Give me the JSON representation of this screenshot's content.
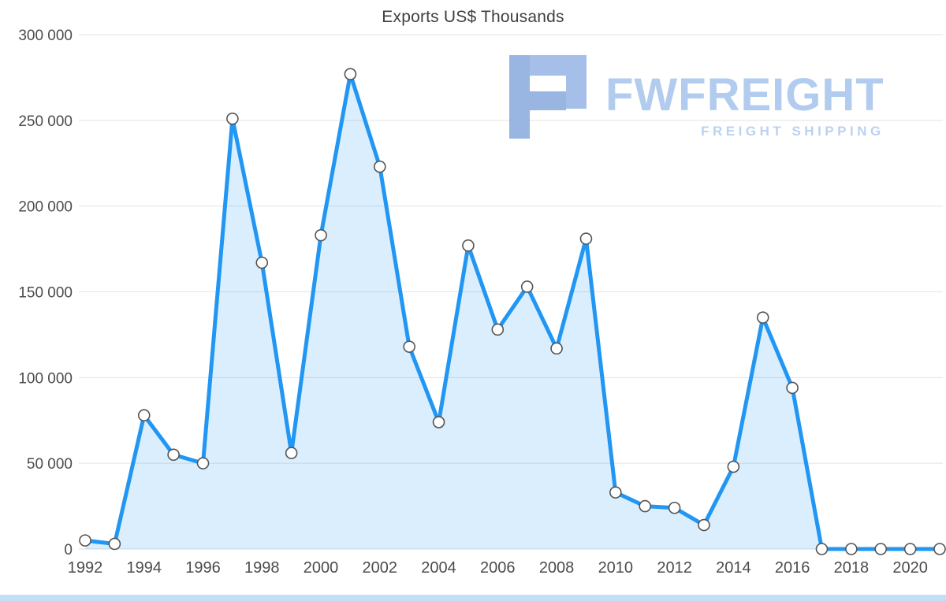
{
  "chart_data": {
    "type": "area",
    "title": "Exports US$ Thousands",
    "x": [
      1992,
      1993,
      1994,
      1995,
      1996,
      1997,
      1998,
      1999,
      2000,
      2001,
      2002,
      2003,
      2004,
      2005,
      2006,
      2007,
      2008,
      2009,
      2010,
      2011,
      2012,
      2013,
      2014,
      2015,
      2016,
      2017,
      2018,
      2019,
      2020,
      2021
    ],
    "series": [
      {
        "name": "Exports US$ Thousands",
        "values": [
          5000,
          3000,
          78000,
          55000,
          50000,
          251000,
          167000,
          56000,
          183000,
          277000,
          223000,
          118000,
          74000,
          177000,
          128000,
          153000,
          117000,
          181000,
          33000,
          25000,
          24000,
          14000,
          48000,
          135000,
          94000,
          0,
          0,
          0,
          0,
          0
        ]
      }
    ],
    "ylim": [
      0,
      300000
    ],
    "yticks": [
      0,
      50000,
      100000,
      150000,
      200000,
      250000,
      300000
    ],
    "ytick_labels": [
      "0",
      "50 000",
      "100 000",
      "150 000",
      "200 000",
      "250 000",
      "300 000"
    ],
    "xticks": [
      1992,
      1994,
      1996,
      1998,
      2000,
      2002,
      2004,
      2006,
      2008,
      2010,
      2012,
      2014,
      2016,
      2018,
      2020
    ],
    "xtick_labels": [
      "1992",
      "1994",
      "1996",
      "1998",
      "2000",
      "2002",
      "2004",
      "2006",
      "2008",
      "2010",
      "2012",
      "2014",
      "2016",
      "2018",
      "2020"
    ],
    "grid": "horizontal",
    "legend": "none",
    "colors": {
      "line": "#2196f3",
      "area": "rgba(33,150,243,0.16)",
      "marker_fill": "#ffffff",
      "marker_stroke": "#545454",
      "gridline": "#e3e3e3",
      "tick_text": "#4c4c4c",
      "title_text": "#3f3f3f"
    }
  },
  "watermark": {
    "brand": "FWFREIGHT",
    "tagline": "FREIGHT SHIPPING",
    "brand_color": "#a9c7ee",
    "logo_color_dark": "#8fadde",
    "logo_color_light": "#9db9e6"
  },
  "scrollbar": {
    "color": "#c3def7"
  }
}
